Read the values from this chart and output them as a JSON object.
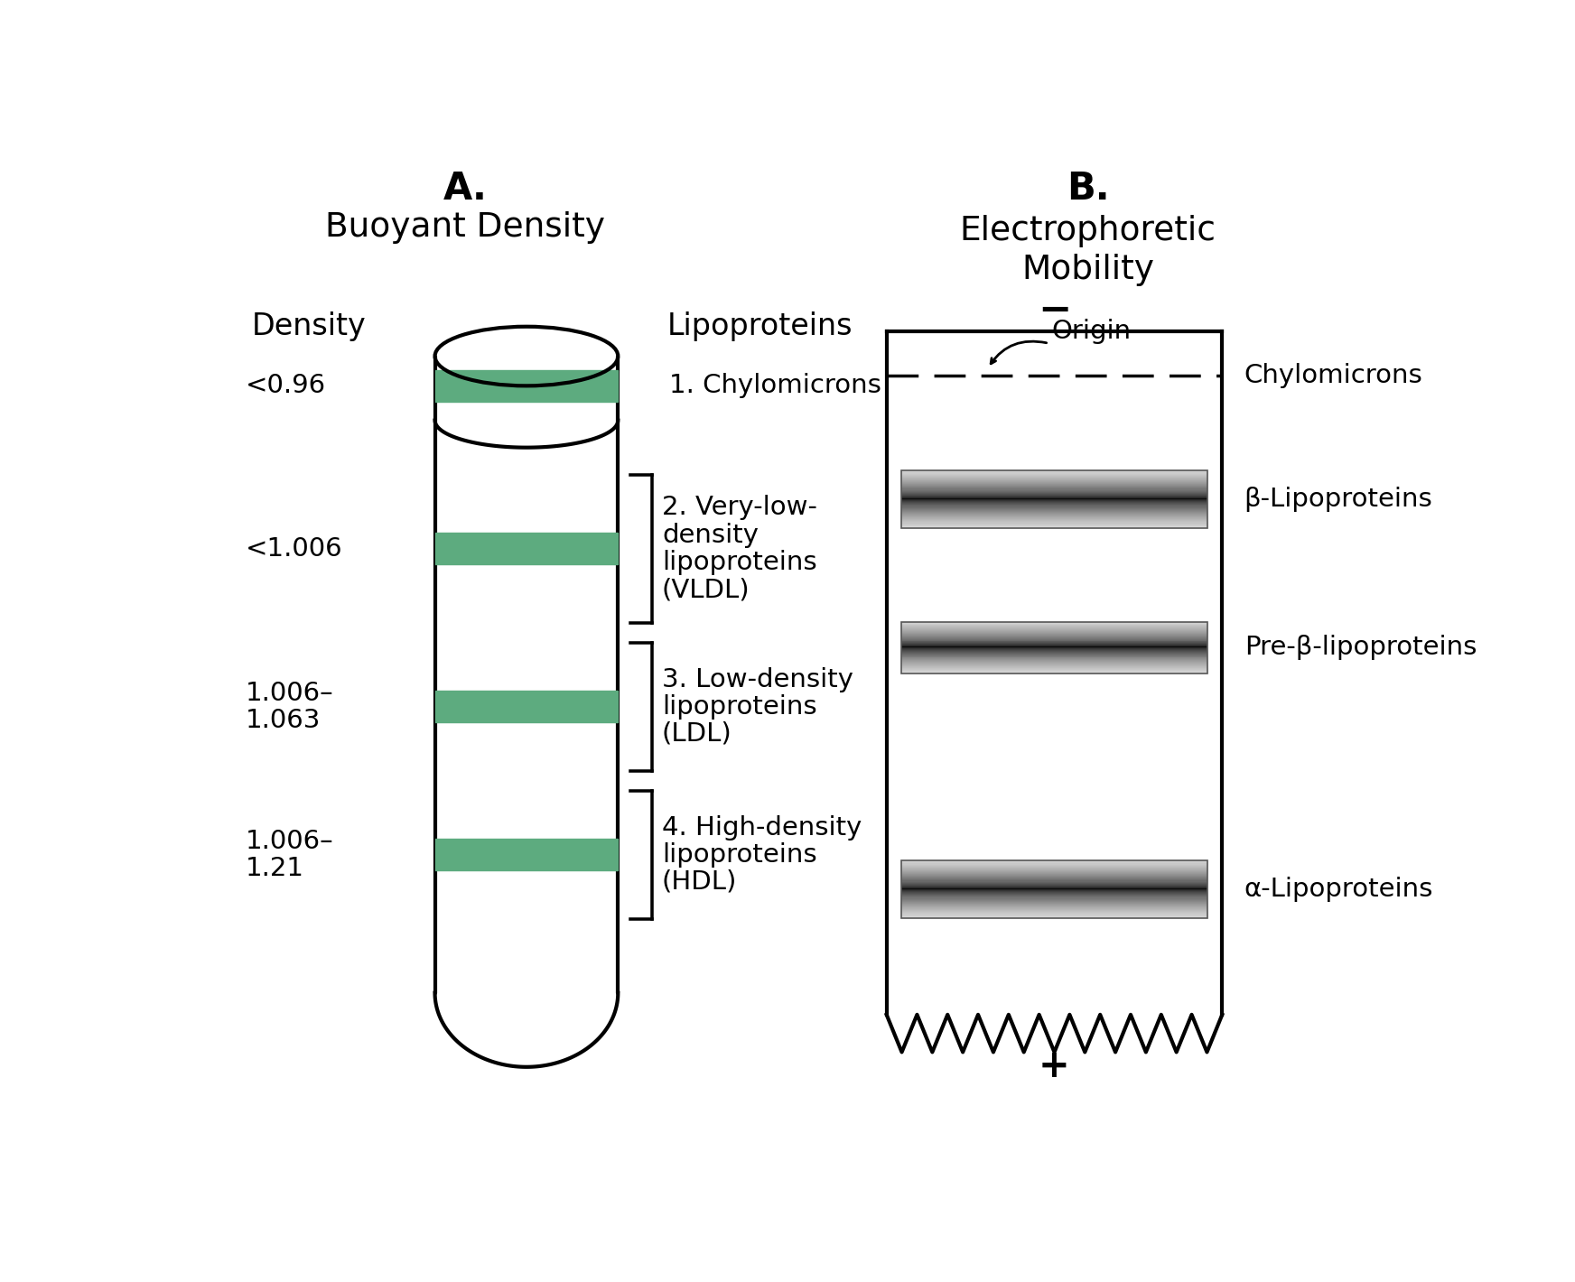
{
  "fig_width": 17.44,
  "fig_height": 14.2,
  "background_color": "#ffffff",
  "title_A": "A.",
  "subtitle_A": "Buoyant Density",
  "title_B": "B.",
  "subtitle_B_line1": "Electrophoretic",
  "subtitle_B_line2": "Mobility",
  "title_fontsize": 30,
  "subtitle_fontsize": 27,
  "label_fontsize": 24,
  "small_fontsize": 21,
  "green_color": "#5dab7f",
  "density_labels": [
    "<0.96",
    "<1.006",
    "1.006–\n1.063",
    "1.006–\n1.21"
  ],
  "lipoprotein_labels": [
    "1. Chylomicrons",
    "2. Very-low-\ndensity\nlipoproteins\n(VLDL)",
    "3. Low-density\nlipoproteins\n(LDL)",
    "4. High-density\nlipoproteins\n(HDL)"
  ],
  "gel_band_right_labels": [
    "Chylomicrons",
    "β-Lipoproteins",
    "Pre-β-lipoproteins",
    "α-Lipoproteins"
  ],
  "minus_sign": "−",
  "plus_sign": "+"
}
